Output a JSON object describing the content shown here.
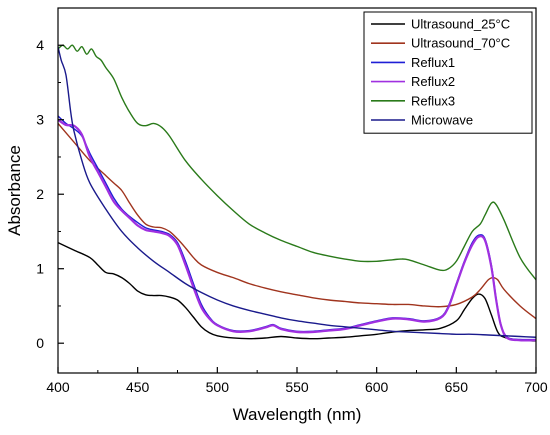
{
  "chart_data": {
    "type": "line",
    "title": "",
    "xlabel": "Wavelength (nm)",
    "ylabel": "Absorbance",
    "xlim": [
      400,
      700
    ],
    "ylim": [
      -0.4,
      4.5
    ],
    "xticks": [
      400,
      450,
      500,
      550,
      600,
      650,
      700
    ],
    "yticks": [
      0,
      1,
      2,
      3,
      4
    ],
    "grid": false,
    "legend_position": "top-right",
    "series": [
      {
        "name": "Ultrasound_25°C",
        "color": "#000000",
        "points": [
          [
            400,
            1.35
          ],
          [
            410,
            1.25
          ],
          [
            420,
            1.15
          ],
          [
            425,
            1.05
          ],
          [
            430,
            0.95
          ],
          [
            435,
            0.93
          ],
          [
            440,
            0.88
          ],
          [
            445,
            0.8
          ],
          [
            450,
            0.7
          ],
          [
            455,
            0.65
          ],
          [
            460,
            0.64
          ],
          [
            465,
            0.64
          ],
          [
            470,
            0.62
          ],
          [
            475,
            0.58
          ],
          [
            480,
            0.48
          ],
          [
            485,
            0.35
          ],
          [
            490,
            0.22
          ],
          [
            495,
            0.14
          ],
          [
            500,
            0.1
          ],
          [
            510,
            0.07
          ],
          [
            520,
            0.06
          ],
          [
            530,
            0.07
          ],
          [
            540,
            0.09
          ],
          [
            550,
            0.07
          ],
          [
            560,
            0.06
          ],
          [
            570,
            0.07
          ],
          [
            580,
            0.08
          ],
          [
            590,
            0.1
          ],
          [
            600,
            0.12
          ],
          [
            610,
            0.15
          ],
          [
            620,
            0.17
          ],
          [
            630,
            0.18
          ],
          [
            640,
            0.2
          ],
          [
            650,
            0.3
          ],
          [
            655,
            0.45
          ],
          [
            660,
            0.6
          ],
          [
            664,
            0.66
          ],
          [
            668,
            0.6
          ],
          [
            672,
            0.38
          ],
          [
            676,
            0.15
          ],
          [
            680,
            0.08
          ],
          [
            690,
            0.04
          ],
          [
            700,
            0.03
          ]
        ]
      },
      {
        "name": "Ultrasound_70°C",
        "color": "#a0341e",
        "points": [
          [
            400,
            2.95
          ],
          [
            410,
            2.7
          ],
          [
            420,
            2.45
          ],
          [
            430,
            2.25
          ],
          [
            435,
            2.15
          ],
          [
            440,
            2.05
          ],
          [
            445,
            1.88
          ],
          [
            450,
            1.72
          ],
          [
            455,
            1.6
          ],
          [
            460,
            1.56
          ],
          [
            465,
            1.55
          ],
          [
            470,
            1.5
          ],
          [
            475,
            1.4
          ],
          [
            480,
            1.28
          ],
          [
            485,
            1.15
          ],
          [
            490,
            1.05
          ],
          [
            500,
            0.95
          ],
          [
            510,
            0.88
          ],
          [
            520,
            0.8
          ],
          [
            530,
            0.74
          ],
          [
            540,
            0.69
          ],
          [
            550,
            0.65
          ],
          [
            560,
            0.61
          ],
          [
            570,
            0.58
          ],
          [
            580,
            0.56
          ],
          [
            590,
            0.54
          ],
          [
            600,
            0.53
          ],
          [
            610,
            0.52
          ],
          [
            620,
            0.52
          ],
          [
            630,
            0.5
          ],
          [
            640,
            0.49
          ],
          [
            650,
            0.52
          ],
          [
            660,
            0.62
          ],
          [
            665,
            0.72
          ],
          [
            670,
            0.85
          ],
          [
            673,
            0.88
          ],
          [
            676,
            0.85
          ],
          [
            680,
            0.72
          ],
          [
            690,
            0.5
          ],
          [
            700,
            0.33
          ]
        ]
      },
      {
        "name": "Reflux1",
        "color": "#1f1fd6",
        "points": [
          [
            400,
            3.05
          ],
          [
            405,
            2.95
          ],
          [
            410,
            2.88
          ],
          [
            415,
            2.78
          ],
          [
            420,
            2.55
          ],
          [
            425,
            2.35
          ],
          [
            430,
            2.15
          ],
          [
            435,
            1.95
          ],
          [
            440,
            1.8
          ],
          [
            445,
            1.7
          ],
          [
            450,
            1.62
          ],
          [
            455,
            1.55
          ],
          [
            460,
            1.52
          ],
          [
            465,
            1.5
          ],
          [
            470,
            1.46
          ],
          [
            475,
            1.35
          ],
          [
            480,
            1.1
          ],
          [
            485,
            0.8
          ],
          [
            490,
            0.52
          ],
          [
            495,
            0.35
          ],
          [
            500,
            0.25
          ],
          [
            510,
            0.17
          ],
          [
            520,
            0.17
          ],
          [
            530,
            0.22
          ],
          [
            535,
            0.25
          ],
          [
            540,
            0.2
          ],
          [
            550,
            0.16
          ],
          [
            560,
            0.16
          ],
          [
            570,
            0.18
          ],
          [
            580,
            0.2
          ],
          [
            590,
            0.25
          ],
          [
            600,
            0.3
          ],
          [
            610,
            0.34
          ],
          [
            620,
            0.33
          ],
          [
            630,
            0.3
          ],
          [
            640,
            0.35
          ],
          [
            645,
            0.5
          ],
          [
            650,
            0.8
          ],
          [
            655,
            1.1
          ],
          [
            660,
            1.35
          ],
          [
            664,
            1.45
          ],
          [
            668,
            1.4
          ],
          [
            672,
            1.05
          ],
          [
            675,
            0.6
          ],
          [
            678,
            0.25
          ],
          [
            682,
            0.08
          ],
          [
            690,
            0.05
          ],
          [
            700,
            0.05
          ]
        ]
      },
      {
        "name": "Reflux2",
        "color": "#a030e0",
        "points": [
          [
            400,
            3.0
          ],
          [
            405,
            2.93
          ],
          [
            410,
            2.92
          ],
          [
            415,
            2.8
          ],
          [
            420,
            2.5
          ],
          [
            425,
            2.3
          ],
          [
            430,
            2.1
          ],
          [
            435,
            1.9
          ],
          [
            440,
            1.78
          ],
          [
            445,
            1.68
          ],
          [
            450,
            1.58
          ],
          [
            455,
            1.52
          ],
          [
            460,
            1.5
          ],
          [
            465,
            1.48
          ],
          [
            470,
            1.44
          ],
          [
            475,
            1.32
          ],
          [
            480,
            1.05
          ],
          [
            485,
            0.75
          ],
          [
            490,
            0.48
          ],
          [
            495,
            0.33
          ],
          [
            500,
            0.24
          ],
          [
            510,
            0.16
          ],
          [
            520,
            0.16
          ],
          [
            530,
            0.21
          ],
          [
            535,
            0.24
          ],
          [
            540,
            0.19
          ],
          [
            550,
            0.15
          ],
          [
            560,
            0.15
          ],
          [
            570,
            0.17
          ],
          [
            580,
            0.19
          ],
          [
            590,
            0.24
          ],
          [
            600,
            0.29
          ],
          [
            610,
            0.33
          ],
          [
            620,
            0.32
          ],
          [
            630,
            0.29
          ],
          [
            640,
            0.34
          ],
          [
            645,
            0.48
          ],
          [
            650,
            0.78
          ],
          [
            655,
            1.08
          ],
          [
            660,
            1.32
          ],
          [
            664,
            1.43
          ],
          [
            668,
            1.38
          ],
          [
            672,
            1.02
          ],
          [
            675,
            0.58
          ],
          [
            678,
            0.24
          ],
          [
            682,
            0.07
          ],
          [
            690,
            0.04
          ],
          [
            700,
            0.04
          ]
        ]
      },
      {
        "name": "Reflux3",
        "color": "#2a7a1a",
        "points": [
          [
            400,
            3.95
          ],
          [
            403,
            4.0
          ],
          [
            406,
            3.95
          ],
          [
            409,
            4.0
          ],
          [
            412,
            3.92
          ],
          [
            415,
            3.98
          ],
          [
            418,
            3.88
          ],
          [
            421,
            3.95
          ],
          [
            424,
            3.85
          ],
          [
            427,
            3.8
          ],
          [
            430,
            3.7
          ],
          [
            435,
            3.55
          ],
          [
            440,
            3.3
          ],
          [
            445,
            3.1
          ],
          [
            450,
            2.95
          ],
          [
            455,
            2.92
          ],
          [
            460,
            2.95
          ],
          [
            465,
            2.9
          ],
          [
            470,
            2.78
          ],
          [
            480,
            2.45
          ],
          [
            490,
            2.2
          ],
          [
            500,
            1.98
          ],
          [
            510,
            1.78
          ],
          [
            520,
            1.6
          ],
          [
            530,
            1.48
          ],
          [
            540,
            1.38
          ],
          [
            550,
            1.3
          ],
          [
            560,
            1.22
          ],
          [
            570,
            1.17
          ],
          [
            580,
            1.13
          ],
          [
            590,
            1.1
          ],
          [
            600,
            1.1
          ],
          [
            610,
            1.12
          ],
          [
            615,
            1.13
          ],
          [
            620,
            1.12
          ],
          [
            630,
            1.05
          ],
          [
            640,
            0.98
          ],
          [
            645,
            1.0
          ],
          [
            650,
            1.1
          ],
          [
            655,
            1.3
          ],
          [
            660,
            1.5
          ],
          [
            665,
            1.6
          ],
          [
            668,
            1.72
          ],
          [
            672,
            1.88
          ],
          [
            675,
            1.86
          ],
          [
            680,
            1.65
          ],
          [
            690,
            1.15
          ],
          [
            700,
            0.85
          ]
        ]
      },
      {
        "name": "Microwave",
        "color": "#1a1a8c",
        "points": [
          [
            400,
            3.98
          ],
          [
            402,
            3.8
          ],
          [
            405,
            3.6
          ],
          [
            408,
            3.1
          ],
          [
            410,
            2.85
          ],
          [
            415,
            2.45
          ],
          [
            420,
            2.15
          ],
          [
            430,
            1.8
          ],
          [
            440,
            1.5
          ],
          [
            450,
            1.28
          ],
          [
            460,
            1.1
          ],
          [
            470,
            0.95
          ],
          [
            480,
            0.8
          ],
          [
            490,
            0.68
          ],
          [
            500,
            0.58
          ],
          [
            510,
            0.5
          ],
          [
            520,
            0.44
          ],
          [
            530,
            0.39
          ],
          [
            540,
            0.34
          ],
          [
            550,
            0.3
          ],
          [
            560,
            0.27
          ],
          [
            570,
            0.24
          ],
          [
            580,
            0.22
          ],
          [
            590,
            0.2
          ],
          [
            600,
            0.18
          ],
          [
            610,
            0.16
          ],
          [
            620,
            0.15
          ],
          [
            630,
            0.14
          ],
          [
            640,
            0.13
          ],
          [
            650,
            0.12
          ],
          [
            660,
            0.12
          ],
          [
            670,
            0.11
          ],
          [
            680,
            0.1
          ],
          [
            690,
            0.09
          ],
          [
            700,
            0.08
          ]
        ]
      }
    ]
  }
}
